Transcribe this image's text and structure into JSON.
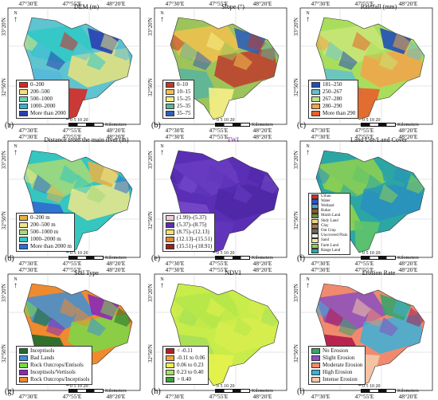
{
  "panels": [
    {
      "label": "(a)",
      "title": "DEM (m)",
      "title_color": "#111111",
      "legend": [
        {
          "name": "0–200",
          "color": "#d62a24"
        },
        {
          "name": "200–500",
          "color": "#f7e37a"
        },
        {
          "name": "500–1000",
          "color": "#6fd0b0"
        },
        {
          "name": "1000–2000",
          "color": "#39b0c9"
        },
        {
          "name": "More than 2000",
          "color": "#2a3fb0"
        }
      ],
      "colors": [
        "#5ec4cf",
        "#2ec9c6",
        "#e9e37c",
        "#55b9d8",
        "#2a3fb0",
        "#d62a24"
      ]
    },
    {
      "label": "(b)",
      "title": "Slope (°)",
      "title_color": "#111111",
      "legend": [
        {
          "name": "0–10",
          "color": "#c0392b"
        },
        {
          "name": "10–15",
          "color": "#f2c14e"
        },
        {
          "name": "15–25",
          "color": "#f7ef86"
        },
        {
          "name": "25–35",
          "color": "#5bb59b"
        },
        {
          "name": "35–75",
          "color": "#2f5fb8"
        }
      ],
      "colors": [
        "#9cc45a",
        "#f2c14e",
        "#c0392b",
        "#5bb59b",
        "#2f5fb8",
        "#f7ef86"
      ]
    },
    {
      "label": "(c)",
      "title": "Rainfall (mm)",
      "title_color": "#111111",
      "legend": [
        {
          "name": "181–250",
          "color": "#1f4fb5"
        },
        {
          "name": "250–267",
          "color": "#65c3c9"
        },
        {
          "name": "267–280",
          "color": "#bfe58a"
        },
        {
          "name": "280–290",
          "color": "#f3a34a"
        },
        {
          "name": "More than 290",
          "color": "#e8602b"
        }
      ],
      "colors": [
        "#a9de5c",
        "#c9e678",
        "#f3a34a",
        "#65c3c9",
        "#1f4fb5",
        "#e8602b"
      ]
    },
    {
      "label": "(d)",
      "title": "Distance from the main river (m)",
      "title_color": "#111111",
      "legend": [
        {
          "name": "0–200 m",
          "color": "#e2b24a"
        },
        {
          "name": "200–500 m",
          "color": "#eee78a"
        },
        {
          "name": "500–1000 m",
          "color": "#a6d977"
        },
        {
          "name": "1000–2000 m",
          "color": "#35c6c0"
        },
        {
          "name": "More than 2000 m",
          "color": "#2f6ad0"
        }
      ],
      "colors": [
        "#35c6c0",
        "#a6d977",
        "#eee78a",
        "#2f6ad0",
        "#e2b24a",
        "#35c6c0"
      ]
    },
    {
      "label": "(e)",
      "title": "TWI",
      "title_color": "#7a2b9b",
      "legend": [
        {
          "name": "(1.99)–(5.37)",
          "color": "#f3c9e0"
        },
        {
          "name": "(5.37)–(8.75)",
          "color": "#5a2fb5"
        },
        {
          "name": "(8.75)–(12.13)",
          "color": "#f1e36a"
        },
        {
          "name": "(12.13)–(15.51)",
          "color": "#e0892f"
        },
        {
          "name": "(15.51)–(18.91)",
          "color": "#9a1f1f"
        }
      ],
      "colors": [
        "#5a2fb5",
        "#6a3cc2",
        "#4e27a6",
        "#7548c9",
        "#5a2fb5",
        "#6236ba"
      ]
    },
    {
      "label": "(f)",
      "title": "Land Use/Land Cover",
      "title_color": "#111111",
      "legend": [
        {
          "name": "Urban",
          "color": "#d62a24"
        },
        {
          "name": "Water",
          "color": "#2a56c6"
        },
        {
          "name": "Wetland",
          "color": "#4aa3d8"
        },
        {
          "name": "Rubar",
          "color": "#8b5a2b"
        },
        {
          "name": "Marsh Land",
          "color": "#6a8f3a"
        },
        {
          "name": "Sbdy Land",
          "color": "#e8d58a"
        },
        {
          "name": "Clay",
          "color": "#b07a3a"
        },
        {
          "name": "Out Crop",
          "color": "#6b6b6b"
        },
        {
          "name": "Uncovered Plain",
          "color": "#f3f0dc"
        },
        {
          "name": "Sand",
          "color": "#f5e7a1"
        },
        {
          "name": "Farm Land",
          "color": "#8fd14f"
        },
        {
          "name": "Range Land",
          "color": "#2ca6a4"
        }
      ],
      "colors": [
        "#2ca6a4",
        "#8fd14f",
        "#2a8fbf",
        "#8fd14f",
        "#2ca6a4",
        "#5ec46a"
      ]
    },
    {
      "label": "(g)",
      "title": "Soil Type",
      "title_color": "#111111",
      "legend": [
        {
          "name": "Inceptisols",
          "color": "#1e6b2c"
        },
        {
          "name": "Bad Lands",
          "color": "#3f8fd6"
        },
        {
          "name": "Rock Outcrops/Entisols",
          "color": "#79d94a"
        },
        {
          "name": "Inceptisols/Vertisols",
          "color": "#8a2ab8"
        },
        {
          "name": "Rock Outcrops/Inceptisols",
          "color": "#f08a2e"
        }
      ],
      "colors": [
        "#f08a2e",
        "#3f8fd6",
        "#79d94a",
        "#1e6b2c",
        "#8a2ab8",
        "#f08a2e"
      ]
    },
    {
      "label": "(h)",
      "title": "NDVI",
      "title_color": "#111111",
      "legend": [
        {
          "name": "< -0.11",
          "color": "#b32020"
        },
        {
          "name": "-0.11 to 0.06",
          "color": "#f1a33a"
        },
        {
          "name": "0.06 to 0.23",
          "color": "#f3ee50"
        },
        {
          "name": "0.23 to 0.40",
          "color": "#a6e05a"
        },
        {
          "name": "> 0.40",
          "color": "#3aa03a"
        }
      ],
      "colors": [
        "#c8ec4a",
        "#b5e64a",
        "#d8ef4e",
        "#a6e05a",
        "#c8ec4a",
        "#e4f24c"
      ]
    },
    {
      "label": "(i)",
      "title": "Erosion Rate",
      "title_color": "#111111",
      "legend": [
        {
          "name": "No Erosion",
          "color": "#3aa36a"
        },
        {
          "name": "Slight Erosion",
          "color": "#8a4fc0"
        },
        {
          "name": "Moderate Erosion",
          "color": "#f08a6e"
        },
        {
          "name": "High Erosion",
          "color": "#3ab0d8"
        },
        {
          "name": "Intense Erosion",
          "color": "#f3c9a8"
        }
      ],
      "colors": [
        "#f08a6e",
        "#8a4fc0",
        "#3ab0d8",
        "#b01a4a",
        "#3aa36a",
        "#f3c9a8"
      ]
    }
  ],
  "axis": {
    "lon_labels": [
      "47°30'E",
      "47°55'E",
      "48°20'E"
    ],
    "lat_top": "33°20'N",
    "lat_bottom": "32°50'N",
    "north": "N",
    "scale_nums": "0 5 10 20",
    "scale_unit": "Kilometers"
  }
}
